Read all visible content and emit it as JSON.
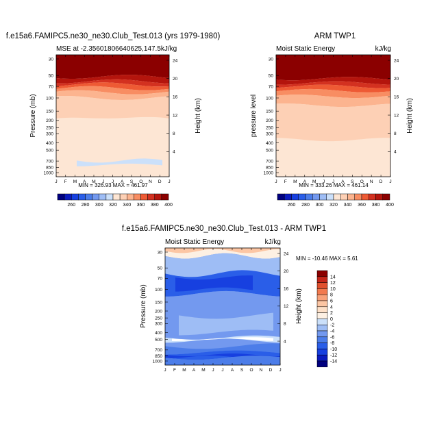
{
  "colors": {
    "mse_scale": [
      "#00007f",
      "#0a1bbf",
      "#1740e0",
      "#2a5ee8",
      "#4c7de9",
      "#7399ef",
      "#9ebdf5",
      "#cbe0fa",
      "#fde6d4",
      "#fdd0b5",
      "#fcb48f",
      "#f88d62",
      "#ee5a34",
      "#d33120",
      "#b4150d",
      "#8b0000"
    ],
    "diff_scale": [
      "#00007f",
      "#0a1bbf",
      "#1740e0",
      "#2a5ee8",
      "#4c7de9",
      "#7399ef",
      "#9ebdf5",
      "#cbe0fa",
      "#fdf0e3",
      "#fde0c8",
      "#fcc6a4",
      "#f9a27a",
      "#f27a4f",
      "#e0502e",
      "#c5261a",
      "#8b0000"
    ]
  },
  "chart_data": [
    {
      "type": "contour",
      "panel_title": "f.e15a6.FAMIPC5.ne30_ne30.Club_Test.013 (yrs 1979-1980)",
      "title": "MSE at -2.35601806640625,147.5kJ/kg",
      "units": "",
      "xlabel": "",
      "ylabel": "Pressure (mb)",
      "ylabel_right": "Height (km)",
      "x_ticks": [
        "J",
        "F",
        "M",
        "A",
        "M",
        "J",
        "J",
        "A",
        "S",
        "O",
        "N",
        "D",
        "J"
      ],
      "y_ticks": [
        30,
        50,
        70,
        100,
        150,
        200,
        250,
        300,
        400,
        500,
        700,
        850,
        1000
      ],
      "y_ticks_right": [
        4,
        8,
        12,
        16,
        20,
        24
      ],
      "min_max": "MIN = 326.93  MAX = 461.97",
      "levels": [
        260,
        280,
        300,
        320,
        340,
        360,
        380,
        400
      ],
      "level_labels": [
        "260",
        "280",
        "300",
        "320",
        "340",
        "360",
        "380",
        "400"
      ]
    },
    {
      "type": "contour",
      "panel_title": "ARM TWP1",
      "title": "Moist Static Energy",
      "units": "kJ/kg",
      "xlabel": "",
      "ylabel": "pressure level",
      "ylabel_right": "Height (km)",
      "x_ticks": [
        "J",
        "F",
        "M",
        "A",
        "M",
        "J",
        "J",
        "A",
        "S",
        "O",
        "N",
        "D",
        "J"
      ],
      "y_ticks": [
        30,
        50,
        70,
        100,
        150,
        200,
        250,
        300,
        400,
        500,
        700,
        850,
        1000
      ],
      "y_ticks_right": [
        4,
        8,
        12,
        16,
        20,
        24
      ],
      "min_max": "MIN = 333.26  MAX = 461.14",
      "levels": [
        260,
        280,
        300,
        320,
        340,
        360,
        380,
        400
      ],
      "level_labels": [
        "260",
        "280",
        "300",
        "320",
        "340",
        "360",
        "380",
        "400"
      ]
    },
    {
      "type": "contour",
      "panel_title": "f.e15a6.FAMIPC5.ne30_ne30.Club_Test.013 - ARM TWP1",
      "title": "Moist Static Energy",
      "units": "kJ/kg",
      "xlabel": "",
      "ylabel": "Pressure (mb)",
      "ylabel_right": "Height (km)",
      "x_ticks": [
        "J",
        "F",
        "M",
        "A",
        "M",
        "J",
        "J",
        "A",
        "S",
        "O",
        "N",
        "D",
        "J"
      ],
      "y_ticks": [
        30,
        50,
        70,
        100,
        150,
        200,
        250,
        300,
        400,
        500,
        700,
        850,
        1000
      ],
      "y_ticks_right": [
        4,
        8,
        12,
        16,
        20,
        24
      ],
      "min_max": "MIN = -10.46  MAX =   5.61",
      "levels": [
        -14,
        -12,
        -10,
        -8,
        -6,
        -4,
        -2,
        0,
        2,
        4,
        6,
        8,
        10,
        12,
        14
      ],
      "level_labels": [
        "14",
        "12",
        "10",
        "8",
        "6",
        "4",
        "2",
        "0",
        "-2",
        "-4",
        "-6",
        "-8",
        "-10",
        "-12",
        "-14"
      ]
    }
  ]
}
